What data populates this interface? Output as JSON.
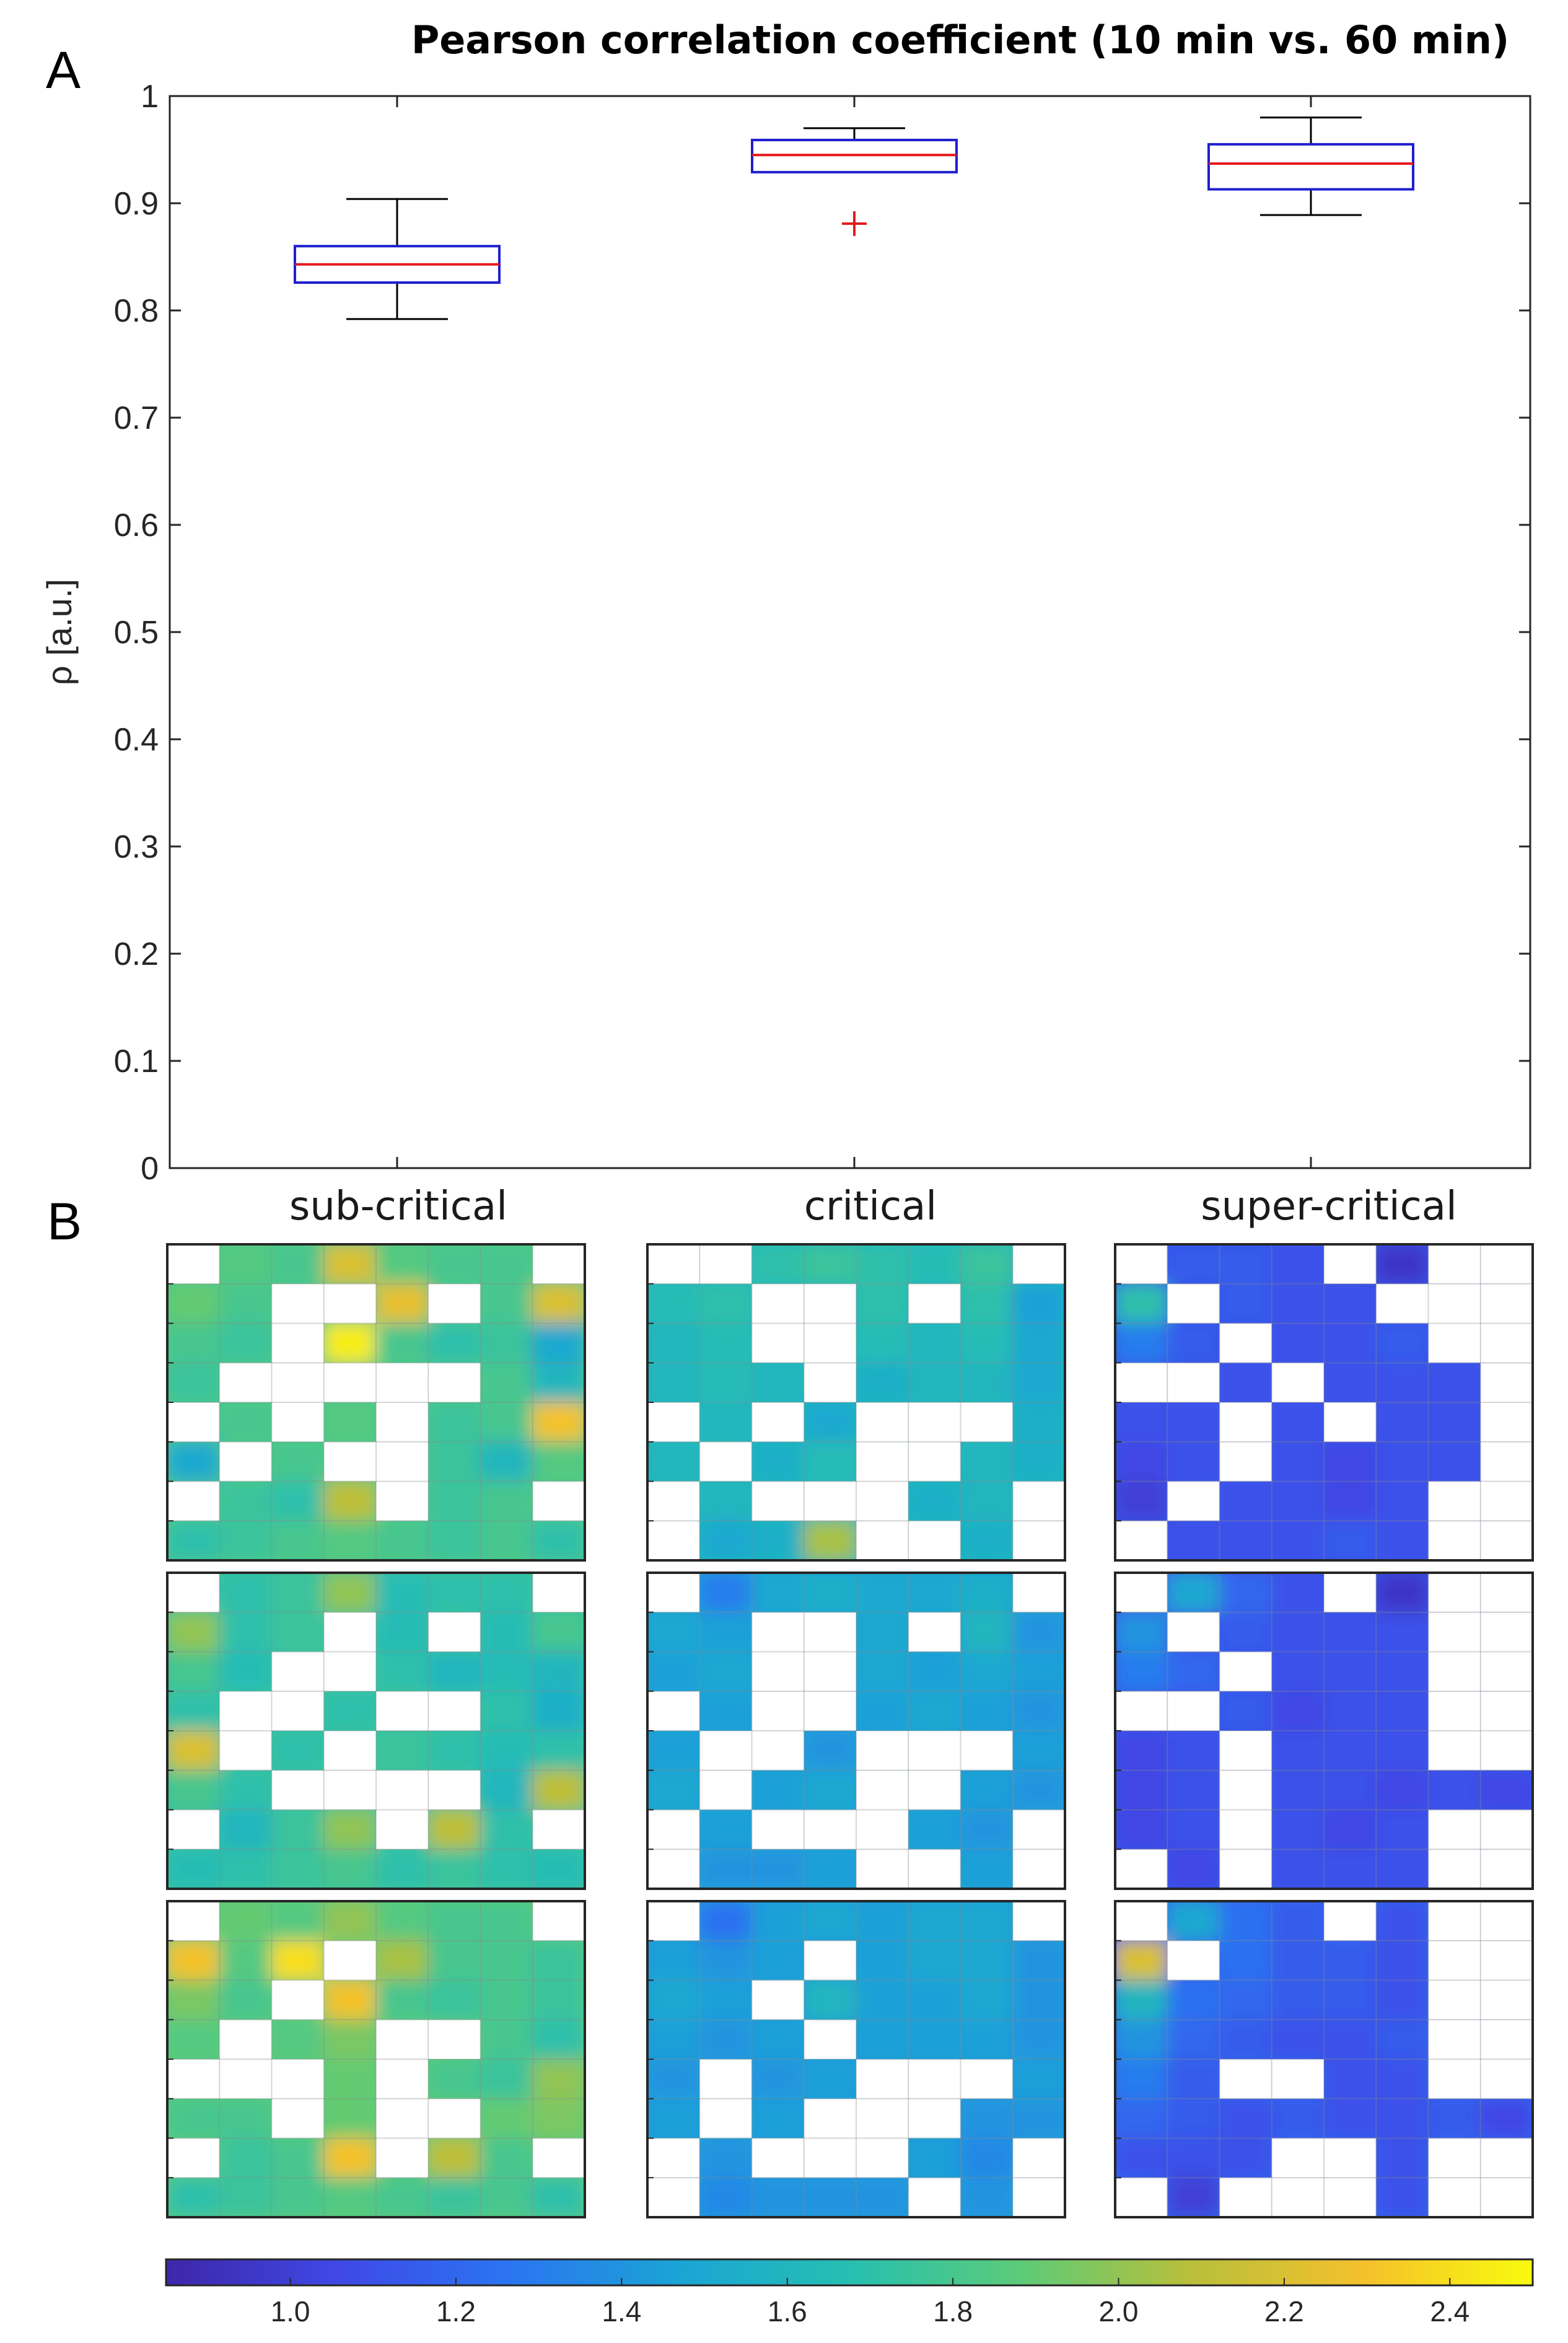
{
  "panel_a_label": "A",
  "panel_b_label": "B",
  "colors": {
    "box_edge": "#1f1fcf",
    "median": "#e31a1c",
    "whisker": "#000000",
    "outlier": "#e31a1c",
    "colormap": [
      "#3e26a8",
      "#3f48e6",
      "#2b74f2",
      "#1aa4d5",
      "#26bfb1",
      "#5ccb78",
      "#b9bf3a",
      "#f4c02c",
      "#f9fb0e"
    ]
  },
  "chart_data": [
    {
      "type": "box",
      "title": "Pearson correlation coefficient (10 min vs. 60 min)",
      "xlabel": "",
      "ylabel": "ρ [a.u.]",
      "ylim": [
        0,
        1
      ],
      "yticks": [
        "0",
        "0.1",
        "0.2",
        "0.3",
        "0.4",
        "0.5",
        "0.6",
        "0.7",
        "0.8",
        "0.9",
        "1"
      ],
      "categories": [
        "sub-critical",
        "critical",
        "super-critical"
      ],
      "boxes": [
        {
          "name": "sub-critical",
          "whisker_low": 0.792,
          "q1": 0.826,
          "median": 0.843,
          "q3": 0.86,
          "whisker_high": 0.904,
          "outliers": []
        },
        {
          "name": "critical",
          "whisker_low": 0.929,
          "q1": 0.929,
          "median": 0.945,
          "q3": 0.959,
          "whisker_high": 0.97,
          "outliers": [
            0.881
          ]
        },
        {
          "name": "super-critical",
          "whisker_low": 0.889,
          "q1": 0.913,
          "median": 0.937,
          "q3": 0.955,
          "whisker_high": 0.98,
          "outliers": []
        }
      ],
      "grid": false
    },
    {
      "type": "heatmap",
      "columns": [
        "sub-critical",
        "critical",
        "super-critical"
      ],
      "rows": 3,
      "grid_size": [
        8,
        8
      ],
      "note": "null = empty (white) cell; values are colormap units",
      "maps": [
        [
          [
            [
              null,
              1.85,
              1.8,
              2.2,
              1.85,
              1.8,
              1.8,
              null
            ],
            [
              1.9,
              1.8,
              null,
              null,
              2.25,
              null,
              1.8,
              2.2
            ],
            [
              1.8,
              1.75,
              null,
              2.45,
              1.8,
              1.7,
              1.75,
              1.5
            ],
            [
              1.75,
              null,
              null,
              null,
              null,
              null,
              1.8,
              1.6
            ],
            [
              null,
              1.8,
              null,
              1.85,
              null,
              1.75,
              1.8,
              2.3
            ],
            [
              1.5,
              null,
              1.8,
              null,
              null,
              1.75,
              1.6,
              1.85
            ],
            [
              null,
              1.75,
              1.7,
              2.1,
              null,
              1.75,
              1.8,
              null
            ],
            [
              1.7,
              1.75,
              1.8,
              1.85,
              1.8,
              1.75,
              1.8,
              1.7
            ]
          ],
          [
            [
              null,
              1.7,
              1.75,
              2.0,
              1.65,
              1.7,
              1.7,
              null
            ],
            [
              2.0,
              1.7,
              1.75,
              null,
              1.65,
              null,
              1.65,
              1.8
            ],
            [
              1.8,
              1.65,
              null,
              null,
              1.7,
              1.6,
              1.65,
              1.6
            ],
            [
              1.7,
              null,
              null,
              1.7,
              null,
              null,
              1.7,
              1.55
            ],
            [
              2.2,
              null,
              1.7,
              null,
              1.75,
              1.7,
              1.65,
              1.7
            ],
            [
              1.8,
              1.7,
              null,
              null,
              null,
              null,
              1.6,
              2.1
            ],
            [
              null,
              1.6,
              1.75,
              2.0,
              null,
              2.1,
              1.7,
              null
            ],
            [
              1.65,
              1.7,
              1.75,
              1.8,
              1.7,
              1.75,
              1.7,
              1.65
            ]
          ],
          [
            [
              null,
              1.9,
              1.85,
              2.0,
              1.85,
              1.8,
              1.8,
              null
            ],
            [
              2.3,
              1.85,
              2.4,
              null,
              2.05,
              1.8,
              1.8,
              1.75
            ],
            [
              1.95,
              1.8,
              null,
              2.3,
              1.8,
              1.75,
              1.8,
              1.75
            ],
            [
              1.85,
              null,
              1.85,
              1.95,
              null,
              null,
              1.8,
              1.7
            ],
            [
              null,
              null,
              null,
              1.9,
              null,
              1.8,
              1.75,
              2.0
            ],
            [
              1.8,
              1.8,
              null,
              1.9,
              null,
              null,
              1.9,
              1.95
            ],
            [
              null,
              1.75,
              1.8,
              2.3,
              null,
              2.1,
              1.8,
              null
            ],
            [
              1.7,
              1.75,
              1.8,
              1.85,
              1.8,
              1.75,
              1.8,
              1.7
            ]
          ]
        ],
        [
          [
            [
              null,
              null,
              1.7,
              1.75,
              1.7,
              1.65,
              1.75,
              null
            ],
            [
              1.65,
              1.7,
              null,
              null,
              1.7,
              null,
              1.7,
              1.45
            ],
            [
              1.6,
              1.65,
              null,
              null,
              1.65,
              1.6,
              1.65,
              1.5
            ],
            [
              1.6,
              1.65,
              1.6,
              null,
              1.55,
              1.6,
              1.6,
              1.5
            ],
            [
              null,
              1.6,
              null,
              1.5,
              null,
              null,
              null,
              1.55
            ],
            [
              1.6,
              null,
              1.55,
              1.65,
              null,
              null,
              1.6,
              1.55
            ],
            [
              null,
              1.6,
              null,
              null,
              null,
              1.55,
              1.6,
              null
            ],
            [
              null,
              1.5,
              1.55,
              2.05,
              null,
              null,
              1.55,
              null
            ]
          ],
          [
            [
              null,
              1.3,
              1.5,
              1.55,
              1.5,
              1.5,
              1.55,
              null
            ],
            [
              1.5,
              1.45,
              null,
              null,
              1.5,
              null,
              1.6,
              1.4
            ],
            [
              1.45,
              1.5,
              null,
              null,
              1.5,
              1.45,
              1.5,
              1.45
            ],
            [
              null,
              1.45,
              null,
              null,
              1.45,
              1.5,
              1.45,
              1.4
            ],
            [
              1.45,
              null,
              null,
              1.4,
              null,
              null,
              null,
              1.45
            ],
            [
              1.5,
              null,
              1.45,
              1.5,
              null,
              null,
              1.45,
              1.4
            ],
            [
              null,
              1.45,
              null,
              null,
              null,
              1.45,
              1.4,
              null
            ],
            [
              null,
              1.4,
              1.4,
              1.45,
              null,
              null,
              1.45,
              null
            ]
          ],
          [
            [
              null,
              1.25,
              1.45,
              1.5,
              1.45,
              1.5,
              1.5,
              null
            ],
            [
              1.45,
              1.4,
              1.45,
              null,
              1.45,
              1.5,
              1.5,
              1.4
            ],
            [
              1.5,
              1.45,
              null,
              1.6,
              1.45,
              1.45,
              1.5,
              1.4
            ],
            [
              1.45,
              1.4,
              1.45,
              null,
              1.45,
              1.45,
              1.45,
              1.4
            ],
            [
              1.4,
              null,
              1.4,
              1.45,
              null,
              null,
              null,
              1.45
            ],
            [
              1.45,
              null,
              1.45,
              null,
              null,
              null,
              1.4,
              1.4
            ],
            [
              null,
              1.4,
              null,
              null,
              null,
              1.45,
              1.35,
              null
            ],
            [
              null,
              1.35,
              1.4,
              1.4,
              1.4,
              null,
              1.4,
              null
            ]
          ]
        ],
        [
          [
            [
              null,
              1.15,
              1.15,
              1.1,
              null,
              0.95,
              null,
              null
            ],
            [
              1.7,
              null,
              1.15,
              1.1,
              1.1,
              null,
              null,
              null
            ],
            [
              1.3,
              1.15,
              null,
              1.1,
              1.1,
              1.15,
              null,
              null
            ],
            [
              null,
              null,
              1.1,
              null,
              1.1,
              1.1,
              1.1,
              null
            ],
            [
              1.1,
              1.1,
              null,
              1.1,
              null,
              1.1,
              1.1,
              null
            ],
            [
              1.05,
              1.1,
              null,
              1.1,
              1.05,
              1.1,
              1.1,
              null
            ],
            [
              1.0,
              null,
              1.1,
              1.1,
              1.05,
              1.1,
              null,
              null
            ],
            [
              null,
              1.1,
              1.1,
              1.1,
              1.15,
              1.1,
              null,
              null
            ]
          ],
          [
            [
              null,
              1.5,
              1.2,
              1.1,
              null,
              0.95,
              null,
              null
            ],
            [
              1.4,
              null,
              1.15,
              1.1,
              1.1,
              1.1,
              null,
              null
            ],
            [
              1.3,
              1.2,
              null,
              1.1,
              1.1,
              1.1,
              null,
              null
            ],
            [
              null,
              null,
              1.15,
              1.05,
              1.1,
              1.1,
              null,
              null
            ],
            [
              1.05,
              1.1,
              null,
              1.1,
              1.1,
              1.1,
              null,
              null
            ],
            [
              1.05,
              1.1,
              null,
              1.1,
              1.1,
              1.05,
              1.1,
              1.05
            ],
            [
              1.05,
              1.1,
              null,
              1.1,
              1.05,
              1.1,
              null,
              null
            ],
            [
              null,
              1.05,
              null,
              1.1,
              1.1,
              1.1,
              null,
              null
            ]
          ],
          [
            [
              null,
              1.5,
              1.25,
              1.15,
              null,
              1.1,
              null,
              null
            ],
            [
              2.2,
              null,
              1.25,
              1.15,
              1.15,
              1.1,
              null,
              null
            ],
            [
              1.6,
              1.25,
              1.2,
              1.15,
              1.15,
              1.1,
              null,
              null
            ],
            [
              1.4,
              1.2,
              1.15,
              1.1,
              1.1,
              1.15,
              null,
              null
            ],
            [
              1.3,
              1.15,
              null,
              null,
              1.1,
              1.1,
              null,
              null
            ],
            [
              1.2,
              1.15,
              1.1,
              1.15,
              1.1,
              1.1,
              1.15,
              1.05
            ],
            [
              1.1,
              1.1,
              1.1,
              null,
              null,
              1.1,
              null,
              null
            ],
            [
              null,
              1.0,
              null,
              null,
              null,
              1.1,
              null,
              null
            ]
          ]
        ]
      ],
      "colorbar": {
        "min": 0.85,
        "max": 2.5,
        "ticks": [
          1.0,
          1.2,
          1.4,
          1.6,
          1.8,
          2.0,
          2.2,
          2.4
        ],
        "tick_labels": [
          "1.0",
          "1.2",
          "1.4",
          "1.6",
          "1.8",
          "2.0",
          "2.2",
          "2.4"
        ]
      }
    }
  ]
}
